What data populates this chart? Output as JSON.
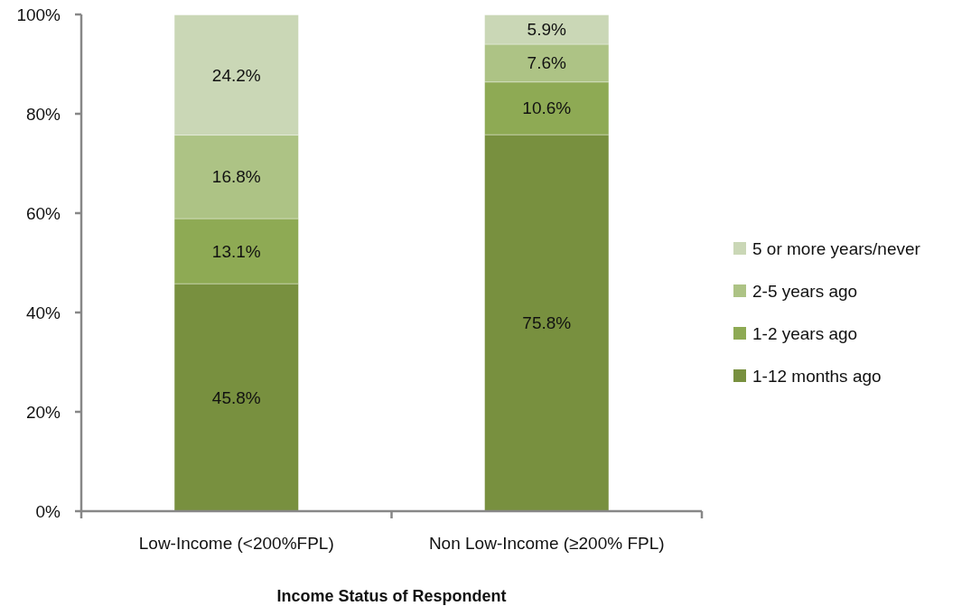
{
  "chart_data": {
    "type": "bar",
    "stacked": true,
    "xlabel": "Income Status of Respondent",
    "categories": [
      "Low-Income (<200%FPL)",
      "Non Low-Income (≥200% FPL)"
    ],
    "series": [
      {
        "name": "1-12 months ago",
        "color": "#78903f",
        "values": [
          45.8,
          75.8
        ],
        "value_labels": [
          "45.8%",
          "75.8%"
        ]
      },
      {
        "name": "1-2 years ago",
        "color": "#8eaa54",
        "values": [
          13.1,
          10.6
        ],
        "value_labels": [
          "13.1%",
          "10.6%"
        ]
      },
      {
        "name": "2-5 years ago",
        "color": "#adc385",
        "values": [
          16.8,
          7.6
        ],
        "value_labels": [
          "16.8%",
          "7.6%"
        ]
      },
      {
        "name": "5 or more years/never",
        "color": "#cad7b6",
        "values": [
          24.2,
          5.9
        ],
        "value_labels": [
          "24.2%",
          "5.9%"
        ]
      }
    ],
    "ylim": [
      0,
      100
    ],
    "yticks": [
      {
        "value": 0,
        "label": "0%"
      },
      {
        "value": 20,
        "label": "20%"
      },
      {
        "value": 40,
        "label": "40%"
      },
      {
        "value": 60,
        "label": "60%"
      },
      {
        "value": 80,
        "label": "80%"
      },
      {
        "value": 100,
        "label": "100%"
      }
    ],
    "grid": false,
    "legend": "right"
  }
}
